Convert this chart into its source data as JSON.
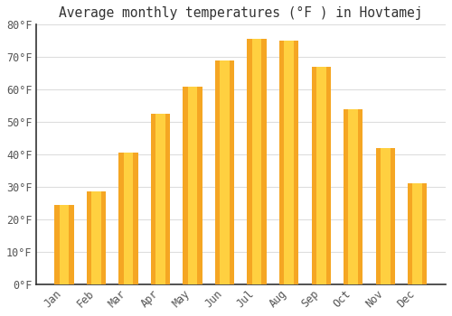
{
  "title": "Average monthly temperatures (°F ) in Hovtamej",
  "months": [
    "Jan",
    "Feb",
    "Mar",
    "Apr",
    "May",
    "Jun",
    "Jul",
    "Aug",
    "Sep",
    "Oct",
    "Nov",
    "Dec"
  ],
  "values": [
    24.5,
    28.5,
    40.5,
    52.5,
    61,
    69,
    75.5,
    75,
    67,
    54,
    42,
    31
  ],
  "ylim": [
    0,
    80
  ],
  "yticks": [
    0,
    10,
    20,
    30,
    40,
    50,
    60,
    70,
    80
  ],
  "ytick_labels": [
    "0°F",
    "10°F",
    "20°F",
    "30°F",
    "40°F",
    "50°F",
    "60°F",
    "70°F",
    "80°F"
  ],
  "background_color": "#FFFFFF",
  "grid_color": "#DDDDDD",
  "title_fontsize": 10.5,
  "tick_fontsize": 8.5,
  "bar_outer_color": "#F5A623",
  "bar_inner_color": "#FFD040",
  "bar_width": 0.6
}
